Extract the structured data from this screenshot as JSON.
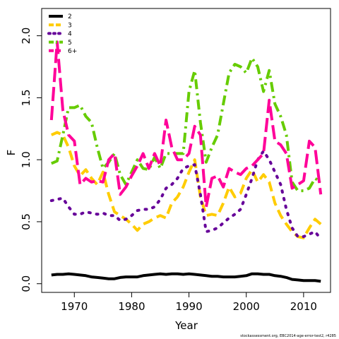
{
  "chart_data": {
    "type": "line",
    "title": "",
    "xlabel": "Year",
    "ylabel": "F",
    "xlim": [
      1964.3,
      2014.7
    ],
    "ylim": [
      -0.07,
      2.22
    ],
    "x_ticks": [
      1970,
      1980,
      1990,
      2000,
      2010
    ],
    "y_ticks": [
      0.0,
      0.5,
      1.0,
      1.5,
      2.0
    ],
    "y_tick_labels": [
      "0.0",
      "0.5",
      "1.0",
      "1.5",
      "2.0"
    ],
    "grid": false,
    "legend_position": "top-left",
    "credit": "stockassessment.org, EBC2014-age-error-test2, r4285",
    "years": [
      1966,
      1967,
      1968,
      1969,
      1970,
      1971,
      1972,
      1973,
      1974,
      1975,
      1976,
      1977,
      1978,
      1979,
      1980,
      1981,
      1982,
      1983,
      1984,
      1985,
      1986,
      1987,
      1988,
      1989,
      1990,
      1991,
      1992,
      1993,
      1994,
      1995,
      1996,
      1997,
      1998,
      1999,
      2000,
      2001,
      2002,
      2003,
      2004,
      2005,
      2006,
      2007,
      2008,
      2009,
      2010,
      2011,
      2012,
      2013
    ],
    "series": [
      {
        "name": "2",
        "color": "#000000",
        "dash": "solid",
        "values": [
          0.07,
          0.075,
          0.075,
          0.08,
          0.075,
          0.07,
          0.065,
          0.055,
          0.05,
          0.045,
          0.04,
          0.04,
          0.05,
          0.055,
          0.055,
          0.055,
          0.065,
          0.07,
          0.075,
          0.08,
          0.075,
          0.08,
          0.08,
          0.075,
          0.08,
          0.075,
          0.07,
          0.065,
          0.06,
          0.06,
          0.055,
          0.055,
          0.055,
          0.06,
          0.065,
          0.08,
          0.08,
          0.075,
          0.075,
          0.065,
          0.06,
          0.05,
          0.035,
          0.03,
          0.025,
          0.025,
          0.025,
          0.02
        ]
      },
      {
        "name": "3",
        "color": "#ffcc00",
        "dash": "long",
        "values": [
          1.2,
          1.22,
          1.2,
          1.1,
          0.95,
          0.87,
          0.92,
          0.85,
          0.8,
          0.9,
          0.72,
          0.58,
          0.55,
          0.52,
          0.48,
          0.43,
          0.48,
          0.5,
          0.53,
          0.55,
          0.53,
          0.65,
          0.7,
          0.78,
          0.9,
          1.0,
          0.7,
          0.55,
          0.56,
          0.55,
          0.65,
          0.78,
          0.7,
          0.73,
          0.85,
          0.92,
          0.82,
          0.88,
          0.82,
          0.65,
          0.55,
          0.48,
          0.42,
          0.38,
          0.37,
          0.45,
          0.52,
          0.48
        ]
      },
      {
        "name": "4",
        "color": "#660099",
        "dash": "dotted",
        "values": [
          0.67,
          0.68,
          0.69,
          0.62,
          0.56,
          0.56,
          0.58,
          0.57,
          0.56,
          0.57,
          0.55,
          0.55,
          0.51,
          0.52,
          0.55,
          0.59,
          0.6,
          0.6,
          0.62,
          0.68,
          0.77,
          0.8,
          0.85,
          0.93,
          0.95,
          0.96,
          0.72,
          0.42,
          0.43,
          0.45,
          0.49,
          0.53,
          0.56,
          0.6,
          0.72,
          0.85,
          1.0,
          1.07,
          1.0,
          0.9,
          0.8,
          0.6,
          0.45,
          0.38,
          0.38,
          0.4,
          0.42,
          0.36
        ]
      },
      {
        "name": "5",
        "color": "#66cc00",
        "dash": "dashdot",
        "values": [
          0.97,
          0.99,
          1.2,
          1.42,
          1.42,
          1.44,
          1.35,
          1.3,
          1.1,
          0.93,
          0.98,
          1.05,
          0.88,
          0.8,
          0.9,
          1.0,
          0.93,
          0.92,
          1.02,
          0.93,
          1.05,
          1.05,
          1.05,
          1.05,
          1.55,
          1.72,
          1.3,
          0.98,
          1.1,
          1.2,
          1.45,
          1.7,
          1.77,
          1.75,
          1.7,
          1.82,
          1.75,
          1.55,
          1.72,
          1.45,
          1.35,
          1.2,
          0.82,
          0.75,
          0.75,
          0.77,
          0.85,
          0.82
        ]
      },
      {
        "name": "6+",
        "color": "#ff0099",
        "dash": "longdash",
        "values": [
          1.32,
          1.95,
          1.4,
          1.2,
          1.15,
          0.8,
          0.85,
          0.82,
          0.83,
          0.82,
          1.0,
          1.05,
          0.72,
          0.78,
          0.87,
          0.95,
          1.05,
          0.93,
          1.05,
          0.95,
          1.32,
          1.1,
          1.0,
          1.0,
          1.05,
          1.27,
          1.2,
          0.62,
          0.85,
          0.87,
          0.78,
          0.93,
          0.9,
          0.88,
          0.93,
          0.95,
          1.0,
          1.05,
          1.48,
          1.15,
          1.12,
          1.05,
          0.77,
          0.8,
          0.83,
          1.15,
          1.1,
          0.72
        ]
      }
    ]
  }
}
